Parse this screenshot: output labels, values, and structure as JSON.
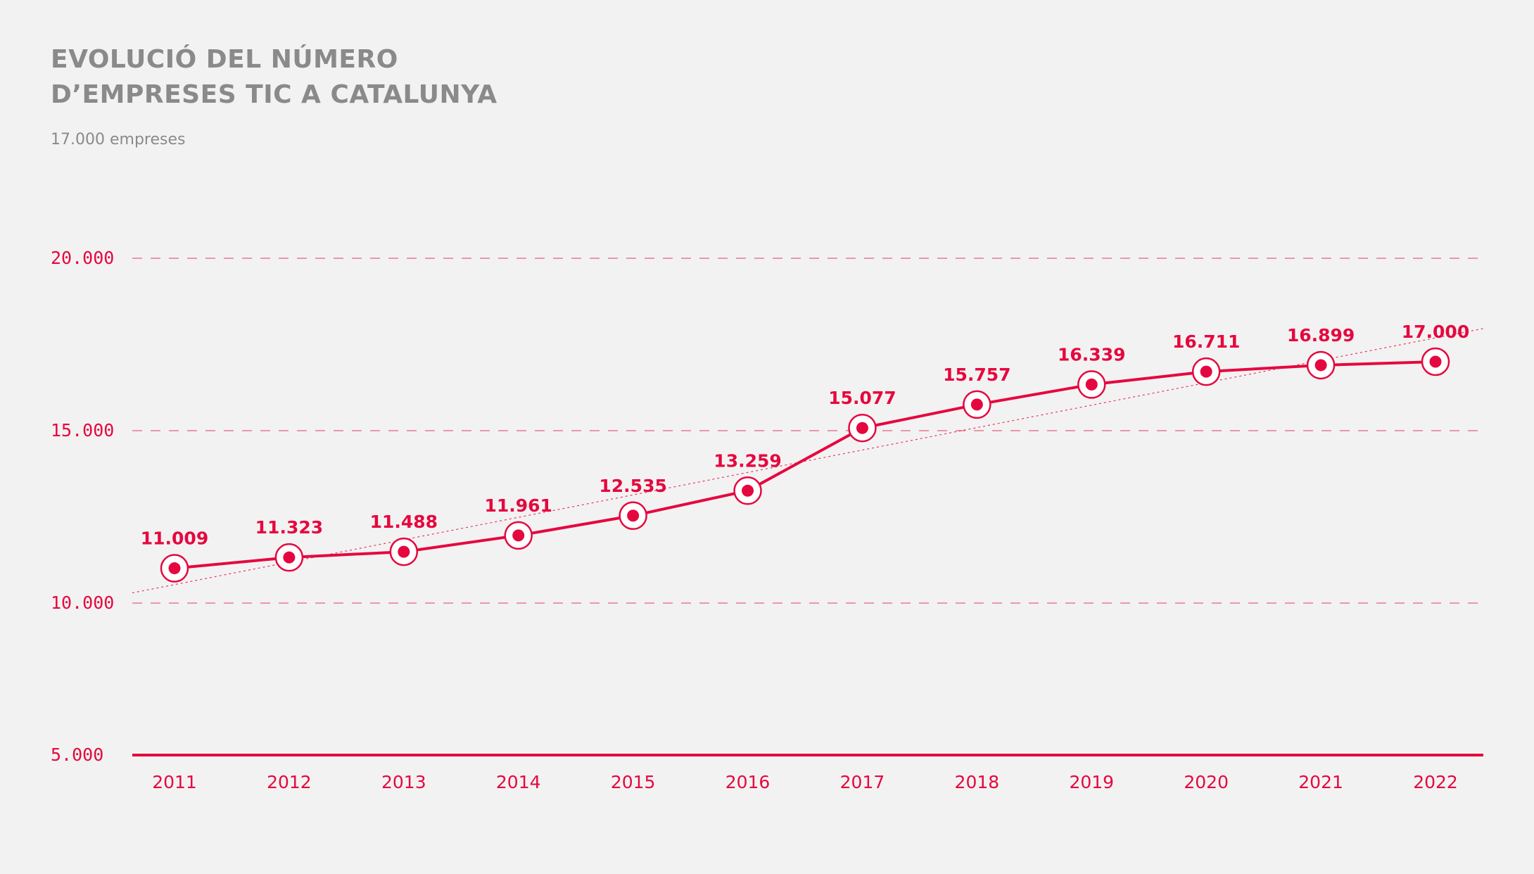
{
  "header": {
    "title_line1": "EVOLUCIÓ DEL NÚMERO",
    "title_line2": "D’EMPRESES TIC A CATALUNYA",
    "subtitle": "17.000 empreses"
  },
  "colors": {
    "accent": "#e5083f",
    "grid": "#e57a95",
    "trend": "#e5083f",
    "title": "#8a8a8a",
    "background": "#f3f2f2"
  },
  "chart_data": {
    "type": "line",
    "title": "EVOLUCIÓ DEL NÚMERO D’EMPRESES TIC A CATALUNYA",
    "subtitle": "17.000 empreses",
    "xlabel": "",
    "ylabel": "",
    "categories": [
      "2011",
      "2012",
      "2013",
      "2014",
      "2015",
      "2016",
      "2017",
      "2018",
      "2019",
      "2020",
      "2021",
      "2022"
    ],
    "series": [
      {
        "values": [
          11009,
          11323,
          11488,
          11961,
          12535,
          13259,
          15077,
          15757,
          16339,
          16711,
          16899,
          17000
        ],
        "data_labels": [
          "11.009",
          "11.323",
          "11.488",
          "11.961",
          "12.535",
          "13.259",
          "15.077",
          "15.757",
          "16.339",
          "16.711",
          "16.899",
          "17.000"
        ]
      }
    ],
    "y_ticks": [
      {
        "value": 20000,
        "label": "20.000"
      },
      {
        "value": 15000,
        "label": "15.000"
      },
      {
        "value": 10000,
        "label": "10.000"
      },
      {
        "value": 5000,
        "label": "5.000"
      }
    ],
    "ylim": [
      5000,
      20000
    ],
    "grid": "dashed horizontal",
    "trendline": true,
    "legend": "none"
  }
}
